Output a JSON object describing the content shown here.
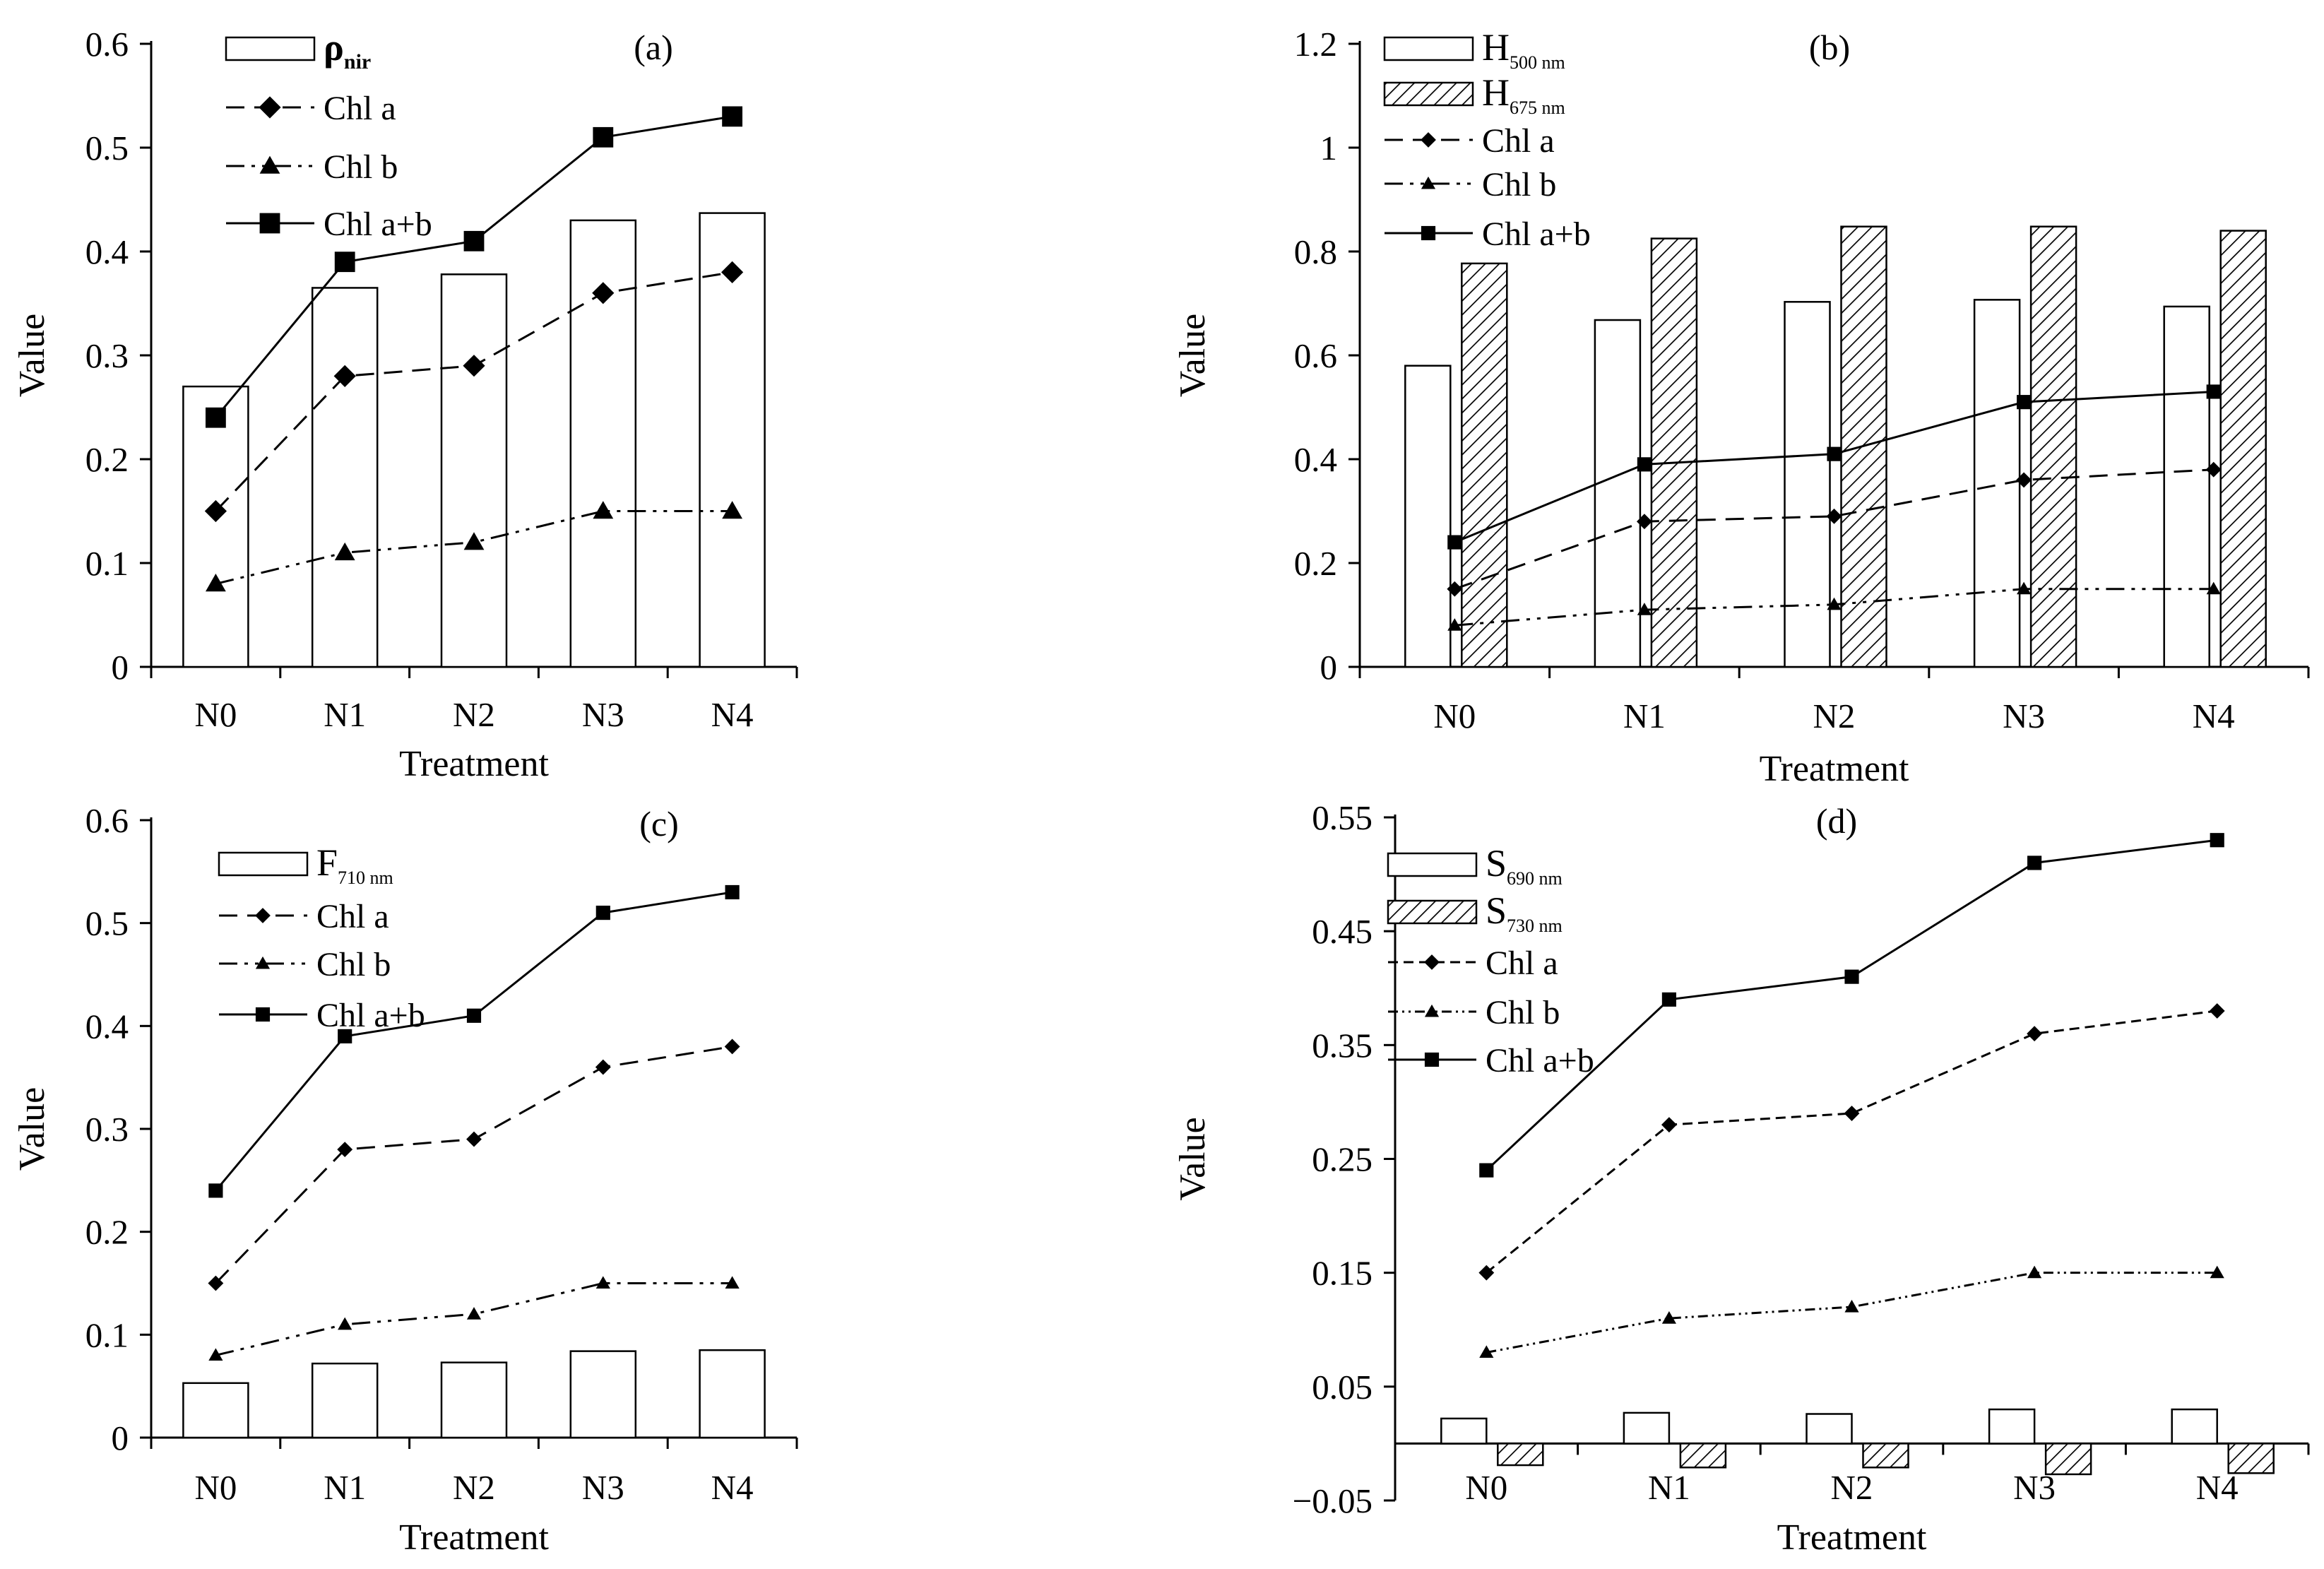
{
  "chart_data": [
    {
      "type": "bar",
      "panel": "(a)",
      "xlabel": "Treatment",
      "ylabel": "Value",
      "categories": [
        "N0",
        "N1",
        "N2",
        "N3",
        "N4"
      ],
      "ylim": [
        0,
        0.6
      ],
      "yticks": [
        "0",
        "0.1",
        "0.2",
        "0.3",
        "0.4",
        "0.5",
        "0.6"
      ],
      "ytick_values": [
        0,
        0.1,
        0.2,
        0.3,
        0.4,
        0.5,
        0.6
      ],
      "bars": [
        {
          "name": "ρ",
          "sub": "nir",
          "bold": true,
          "pattern": "none",
          "values": [
            0.27,
            0.365,
            0.378,
            0.43,
            0.437
          ]
        }
      ],
      "lines": [
        {
          "name": "Chl a",
          "marker": "diamond",
          "dash": "dashed",
          "values": [
            0.15,
            0.28,
            0.29,
            0.36,
            0.38
          ]
        },
        {
          "name": "Chl b",
          "marker": "triangle",
          "dash": "dashdotdot",
          "values": [
            0.08,
            0.11,
            0.12,
            0.15,
            0.15
          ]
        },
        {
          "name": "Chl a+b",
          "marker": "square",
          "dash": "solid",
          "values": [
            0.24,
            0.39,
            0.41,
            0.51,
            0.53
          ]
        }
      ]
    },
    {
      "type": "bar",
      "panel": "(b)",
      "xlabel": "Treatment",
      "ylabel": "Value",
      "categories": [
        "N0",
        "N1",
        "N2",
        "N3",
        "N4"
      ],
      "ylim": [
        0,
        1.2
      ],
      "yticks": [
        "0",
        "0.2",
        "0.4",
        "0.6",
        "0.8",
        "1",
        "1.2"
      ],
      "ytick_values": [
        0,
        0.2,
        0.4,
        0.6,
        0.8,
        1.0,
        1.2
      ],
      "bars": [
        {
          "name": "H",
          "sub": "500 nm",
          "bold": false,
          "pattern": "none",
          "values": [
            0.58,
            0.668,
            0.703,
            0.707,
            0.694
          ]
        },
        {
          "name": "H",
          "sub": "675 nm",
          "bold": false,
          "pattern": "hatch",
          "values": [
            0.777,
            0.825,
            0.848,
            0.848,
            0.84
          ]
        }
      ],
      "lines": [
        {
          "name": "Chl a",
          "marker": "diamond",
          "dash": "dashed",
          "values": [
            0.15,
            0.28,
            0.29,
            0.36,
            0.38
          ]
        },
        {
          "name": "Chl b",
          "marker": "triangle",
          "dash": "dashdotdot",
          "values": [
            0.08,
            0.11,
            0.12,
            0.15,
            0.15
          ]
        },
        {
          "name": "Chl a+b",
          "marker": "square",
          "dash": "solid",
          "values": [
            0.24,
            0.39,
            0.41,
            0.51,
            0.53
          ]
        }
      ]
    },
    {
      "type": "bar",
      "panel": "(c)",
      "xlabel": "Treatment",
      "ylabel": "Value",
      "categories": [
        "N0",
        "N1",
        "N2",
        "N3",
        "N4"
      ],
      "ylim": [
        0,
        0.6
      ],
      "yticks": [
        "0",
        "0.1",
        "0.2",
        "0.3",
        "0.4",
        "0.5",
        "0.6"
      ],
      "ytick_values": [
        0,
        0.1,
        0.2,
        0.3,
        0.4,
        0.5,
        0.6
      ],
      "bars": [
        {
          "name": "F",
          "sub": "710 nm",
          "bold": false,
          "pattern": "none",
          "values": [
            0.053,
            0.072,
            0.073,
            0.084,
            0.085
          ]
        }
      ],
      "lines": [
        {
          "name": "Chl a",
          "marker": "diamond",
          "dash": "dashed",
          "values": [
            0.15,
            0.28,
            0.29,
            0.36,
            0.38
          ]
        },
        {
          "name": "Chl b",
          "marker": "triangle",
          "dash": "dashdotdot",
          "values": [
            0.08,
            0.11,
            0.12,
            0.15,
            0.15
          ]
        },
        {
          "name": "Chl a+b",
          "marker": "square",
          "dash": "solid",
          "values": [
            0.24,
            0.39,
            0.41,
            0.51,
            0.53
          ]
        }
      ]
    },
    {
      "type": "bar",
      "panel": "(d)",
      "xlabel": "Treatment",
      "ylabel": "Value",
      "categories": [
        "N0",
        "N1",
        "N2",
        "N3",
        "N4"
      ],
      "ylim": [
        -0.05,
        0.55
      ],
      "yticks": [
        "−0.05",
        "0.05",
        "0.15",
        "0.25",
        "0.35",
        "0.45",
        "0.55"
      ],
      "ytick_values": [
        -0.05,
        0.05,
        0.15,
        0.25,
        0.35,
        0.45,
        0.55
      ],
      "bars": [
        {
          "name": "S",
          "sub": "690 nm",
          "bold": false,
          "pattern": "none",
          "values": [
            0.022,
            0.027,
            0.026,
            0.03,
            0.03
          ]
        },
        {
          "name": "S",
          "sub": "730 nm",
          "bold": false,
          "pattern": "hatch",
          "values": [
            -0.019,
            -0.021,
            -0.021,
            -0.027,
            -0.026
          ]
        }
      ],
      "lines": [
        {
          "name": "Chl a",
          "marker": "diamond",
          "dash": "dashed",
          "values": [
            0.15,
            0.28,
            0.29,
            0.36,
            0.38
          ]
        },
        {
          "name": "Chl b",
          "marker": "triangle",
          "dash": "dashdotdot",
          "values": [
            0.08,
            0.11,
            0.12,
            0.15,
            0.15
          ]
        },
        {
          "name": "Chl a+b",
          "marker": "square",
          "dash": "solid",
          "values": [
            0.24,
            0.39,
            0.41,
            0.51,
            0.53
          ]
        }
      ]
    }
  ]
}
